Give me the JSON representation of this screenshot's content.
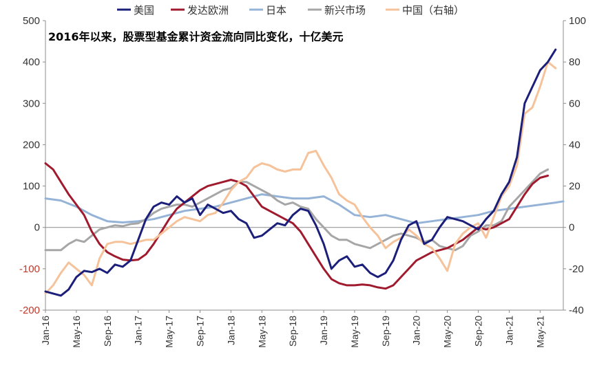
{
  "chart_data": {
    "type": "line",
    "title": "2016年以来，股票型基金累计资金流向同比变化，十亿美元",
    "ylim_left": [
      -200,
      500
    ],
    "ylim_right": [
      -40,
      100
    ],
    "yticks_left": [
      "500",
      "400",
      "300",
      "200",
      "100",
      "0",
      "-100",
      "-200"
    ],
    "yticks_right": [
      "100",
      "80",
      "60",
      "40",
      "20",
      "0",
      "-20",
      "-40"
    ],
    "x_tick_labels": [
      "Jan-16",
      "May-16",
      "Sep-16",
      "Jan-17",
      "May-17",
      "Sep-17",
      "Jan-18",
      "May-18",
      "Sep-18",
      "Jan-19",
      "May-19",
      "Sep-19",
      "Jan-20",
      "May-20",
      "Sep-20",
      "Jan-21",
      "May-21"
    ],
    "legend_position": "top",
    "grid": false,
    "series": [
      {
        "name": "美国",
        "axis": "left",
        "color": "#1b1f7a",
        "points": [
          [
            0,
            -155
          ],
          [
            2,
            -165
          ],
          [
            3,
            -150
          ],
          [
            4,
            -120
          ],
          [
            5,
            -105
          ],
          [
            6,
            -108
          ],
          [
            7,
            -100
          ],
          [
            8,
            -110
          ],
          [
            9,
            -90
          ],
          [
            10,
            -95
          ],
          [
            11,
            -80
          ],
          [
            12,
            -30
          ],
          [
            13,
            20
          ],
          [
            14,
            50
          ],
          [
            15,
            60
          ],
          [
            16,
            55
          ],
          [
            17,
            75
          ],
          [
            18,
            60
          ],
          [
            19,
            70
          ],
          [
            20,
            30
          ],
          [
            21,
            55
          ],
          [
            22,
            45
          ],
          [
            23,
            35
          ],
          [
            24,
            40
          ],
          [
            25,
            20
          ],
          [
            26,
            10
          ],
          [
            27,
            -25
          ],
          [
            28,
            -20
          ],
          [
            29,
            -5
          ],
          [
            30,
            10
          ],
          [
            31,
            5
          ],
          [
            32,
            30
          ],
          [
            33,
            45
          ],
          [
            34,
            40
          ],
          [
            35,
            5
          ],
          [
            36,
            -40
          ],
          [
            37,
            -100
          ],
          [
            38,
            -80
          ],
          [
            39,
            -70
          ],
          [
            40,
            -95
          ],
          [
            41,
            -90
          ],
          [
            42,
            -110
          ],
          [
            43,
            -120
          ],
          [
            44,
            -110
          ],
          [
            45,
            -80
          ],
          [
            46,
            -30
          ],
          [
            47,
            5
          ],
          [
            48,
            15
          ],
          [
            49,
            -40
          ],
          [
            50,
            -30
          ],
          [
            51,
            0
          ],
          [
            52,
            25
          ],
          [
            53,
            20
          ],
          [
            54,
            15
          ],
          [
            55,
            5
          ],
          [
            56,
            -5
          ],
          [
            57,
            20
          ],
          [
            58,
            40
          ],
          [
            59,
            80
          ],
          [
            60,
            110
          ],
          [
            61,
            170
          ],
          [
            62,
            300
          ],
          [
            63,
            340
          ],
          [
            64,
            380
          ],
          [
            65,
            400
          ],
          [
            66,
            430
          ]
        ]
      },
      {
        "name": "发达欧洲",
        "axis": "left",
        "color": "#a01a2e",
        "points": [
          [
            0,
            155
          ],
          [
            1,
            140
          ],
          [
            2,
            110
          ],
          [
            3,
            80
          ],
          [
            4,
            55
          ],
          [
            5,
            30
          ],
          [
            6,
            -10
          ],
          [
            7,
            -40
          ],
          [
            8,
            -60
          ],
          [
            9,
            -70
          ],
          [
            10,
            -78
          ],
          [
            11,
            -80
          ],
          [
            12,
            -78
          ],
          [
            13,
            -65
          ],
          [
            14,
            -40
          ],
          [
            15,
            -10
          ],
          [
            16,
            20
          ],
          [
            17,
            45
          ],
          [
            18,
            60
          ],
          [
            19,
            75
          ],
          [
            20,
            90
          ],
          [
            21,
            100
          ],
          [
            22,
            105
          ],
          [
            23,
            110
          ],
          [
            24,
            115
          ],
          [
            25,
            110
          ],
          [
            26,
            100
          ],
          [
            27,
            75
          ],
          [
            28,
            50
          ],
          [
            29,
            40
          ],
          [
            30,
            30
          ],
          [
            31,
            20
          ],
          [
            32,
            10
          ],
          [
            33,
            -10
          ],
          [
            34,
            -40
          ],
          [
            35,
            -70
          ],
          [
            36,
            -100
          ],
          [
            37,
            -125
          ],
          [
            38,
            -135
          ],
          [
            39,
            -140
          ],
          [
            40,
            -140
          ],
          [
            41,
            -138
          ],
          [
            42,
            -140
          ],
          [
            43,
            -145
          ],
          [
            44,
            -148
          ],
          [
            45,
            -140
          ],
          [
            46,
            -120
          ],
          [
            47,
            -100
          ],
          [
            48,
            -80
          ],
          [
            49,
            -70
          ],
          [
            50,
            -60
          ],
          [
            51,
            -55
          ],
          [
            52,
            -50
          ],
          [
            53,
            -40
          ],
          [
            54,
            -30
          ],
          [
            55,
            -15
          ],
          [
            56,
            0
          ],
          [
            57,
            -5
          ],
          [
            58,
            0
          ],
          [
            59,
            10
          ],
          [
            60,
            20
          ],
          [
            61,
            50
          ],
          [
            62,
            80
          ],
          [
            63,
            105
          ],
          [
            64,
            120
          ],
          [
            65,
            125
          ]
        ]
      },
      {
        "name": "日本",
        "axis": "left",
        "color": "#95b3d7",
        "points": [
          [
            0,
            70
          ],
          [
            2,
            65
          ],
          [
            4,
            50
          ],
          [
            6,
            30
          ],
          [
            8,
            15
          ],
          [
            10,
            12
          ],
          [
            12,
            15
          ],
          [
            14,
            20
          ],
          [
            16,
            30
          ],
          [
            18,
            40
          ],
          [
            20,
            45
          ],
          [
            22,
            50
          ],
          [
            24,
            60
          ],
          [
            26,
            70
          ],
          [
            28,
            80
          ],
          [
            30,
            75
          ],
          [
            32,
            70
          ],
          [
            34,
            70
          ],
          [
            36,
            75
          ],
          [
            38,
            55
          ],
          [
            40,
            30
          ],
          [
            42,
            25
          ],
          [
            44,
            30
          ],
          [
            46,
            20
          ],
          [
            48,
            10
          ],
          [
            50,
            15
          ],
          [
            52,
            20
          ],
          [
            54,
            25
          ],
          [
            56,
            30
          ],
          [
            58,
            40
          ],
          [
            60,
            45
          ],
          [
            62,
            50
          ],
          [
            64,
            55
          ],
          [
            66,
            60
          ],
          [
            67,
            63
          ]
        ]
      },
      {
        "name": "新兴市场",
        "axis": "left",
        "color": "#a6a6a6",
        "points": [
          [
            0,
            -55
          ],
          [
            2,
            -55
          ],
          [
            3,
            -40
          ],
          [
            4,
            -30
          ],
          [
            5,
            -35
          ],
          [
            6,
            -20
          ],
          [
            7,
            -5
          ],
          [
            8,
            0
          ],
          [
            9,
            5
          ],
          [
            10,
            3
          ],
          [
            11,
            8
          ],
          [
            12,
            10
          ],
          [
            13,
            20
          ],
          [
            14,
            35
          ],
          [
            15,
            45
          ],
          [
            16,
            50
          ],
          [
            17,
            55
          ],
          [
            18,
            55
          ],
          [
            19,
            50
          ],
          [
            20,
            60
          ],
          [
            21,
            70
          ],
          [
            22,
            80
          ],
          [
            23,
            90
          ],
          [
            24,
            95
          ],
          [
            25,
            110
          ],
          [
            26,
            110
          ],
          [
            27,
            100
          ],
          [
            28,
            90
          ],
          [
            29,
            80
          ],
          [
            30,
            65
          ],
          [
            31,
            55
          ],
          [
            32,
            60
          ],
          [
            33,
            50
          ],
          [
            34,
            45
          ],
          [
            35,
            20
          ],
          [
            36,
            0
          ],
          [
            37,
            -20
          ],
          [
            38,
            -30
          ],
          [
            39,
            -30
          ],
          [
            40,
            -40
          ],
          [
            41,
            -45
          ],
          [
            42,
            -50
          ],
          [
            43,
            -40
          ],
          [
            44,
            -30
          ],
          [
            45,
            -20
          ],
          [
            46,
            -15
          ],
          [
            47,
            -20
          ],
          [
            48,
            -25
          ],
          [
            49,
            -35
          ],
          [
            50,
            -30
          ],
          [
            51,
            -45
          ],
          [
            52,
            -50
          ],
          [
            53,
            -55
          ],
          [
            54,
            -45
          ],
          [
            55,
            -20
          ],
          [
            56,
            -10
          ],
          [
            57,
            5
          ],
          [
            58,
            5
          ],
          [
            59,
            15
          ],
          [
            60,
            50
          ],
          [
            61,
            70
          ],
          [
            62,
            90
          ],
          [
            63,
            110
          ],
          [
            64,
            130
          ],
          [
            65,
            140
          ]
        ]
      },
      {
        "name": "中国（右轴）",
        "axis": "right",
        "color": "#f5c29a",
        "points": [
          [
            0,
            -32
          ],
          [
            1,
            -28
          ],
          [
            2,
            -22
          ],
          [
            3,
            -17
          ],
          [
            4,
            -20
          ],
          [
            5,
            -23
          ],
          [
            6,
            -28
          ],
          [
            7,
            -15
          ],
          [
            8,
            -8
          ],
          [
            9,
            -7
          ],
          [
            10,
            -7
          ],
          [
            11,
            -8
          ],
          [
            12,
            -7
          ],
          [
            13,
            -6
          ],
          [
            14,
            -6
          ],
          [
            15,
            -3
          ],
          [
            16,
            0
          ],
          [
            17,
            3
          ],
          [
            18,
            5
          ],
          [
            19,
            4
          ],
          [
            20,
            3
          ],
          [
            21,
            6
          ],
          [
            22,
            7
          ],
          [
            23,
            12
          ],
          [
            24,
            18
          ],
          [
            25,
            22
          ],
          [
            26,
            24
          ],
          [
            27,
            29
          ],
          [
            28,
            31
          ],
          [
            29,
            30
          ],
          [
            30,
            28
          ],
          [
            31,
            27
          ],
          [
            32,
            28
          ],
          [
            33,
            28
          ],
          [
            34,
            36
          ],
          [
            35,
            37
          ],
          [
            36,
            30
          ],
          [
            37,
            24
          ],
          [
            38,
            16
          ],
          [
            39,
            13
          ],
          [
            40,
            11
          ],
          [
            41,
            5
          ],
          [
            42,
            0
          ],
          [
            43,
            -4
          ],
          [
            44,
            -10
          ],
          [
            45,
            -7
          ],
          [
            46,
            -5
          ],
          [
            47,
            -1
          ],
          [
            48,
            -4
          ],
          [
            49,
            -8
          ],
          [
            50,
            -10
          ],
          [
            51,
            -15
          ],
          [
            52,
            -21
          ],
          [
            53,
            -8
          ],
          [
            54,
            -3
          ],
          [
            55,
            0
          ],
          [
            56,
            2
          ],
          [
            57,
            -5
          ],
          [
            58,
            5
          ],
          [
            59,
            15
          ],
          [
            60,
            20
          ],
          [
            61,
            30
          ],
          [
            62,
            55
          ],
          [
            63,
            58
          ],
          [
            64,
            68
          ],
          [
            65,
            80
          ],
          [
            66,
            77
          ]
        ]
      }
    ]
  }
}
